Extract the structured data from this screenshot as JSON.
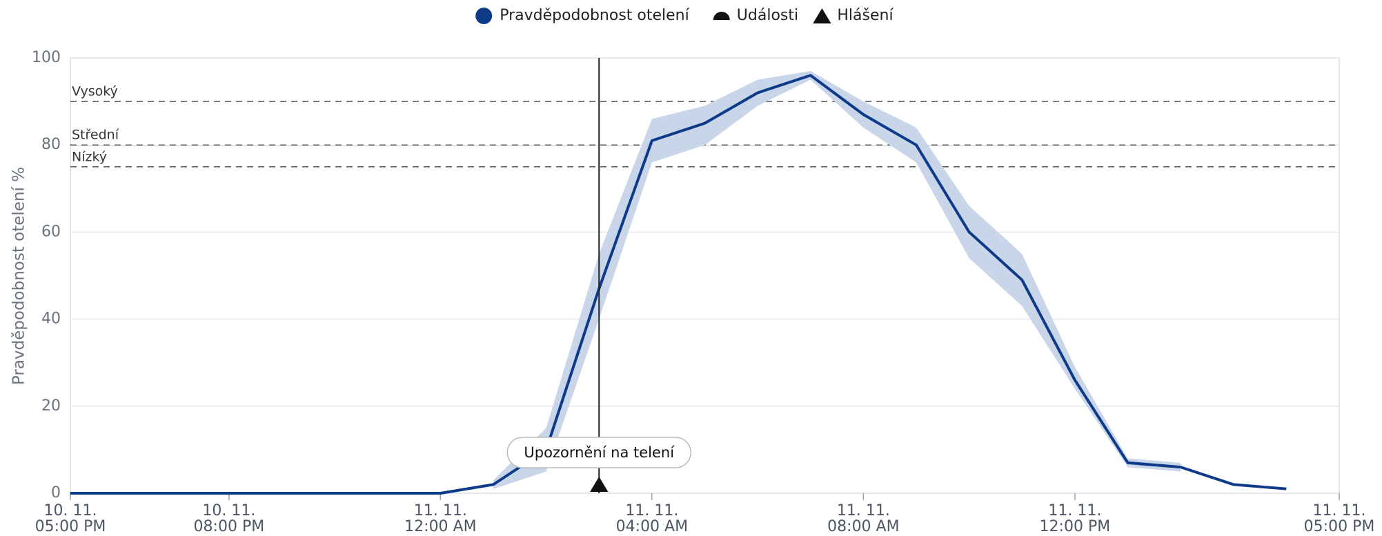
{
  "chart_data": {
    "type": "line",
    "ylabel": "Pravděpodobnost otelení %",
    "x": [
      0,
      1,
      2,
      3,
      4,
      5,
      6,
      7,
      8,
      9,
      10,
      11,
      12,
      13,
      14,
      15,
      16,
      17,
      18,
      19,
      20,
      21,
      22,
      23
    ],
    "series": [
      {
        "name": "Pravděpodobnost otelení",
        "color": "#0d3b8a",
        "band_color": "#c9d5e8",
        "values": [
          0,
          0,
          0,
          0,
          0,
          0,
          0,
          0,
          2,
          10,
          47,
          81,
          85,
          92,
          96,
          87,
          80,
          60,
          49,
          26,
          7,
          6,
          2,
          1
        ],
        "lower": [
          null,
          null,
          null,
          null,
          null,
          null,
          null,
          null,
          1,
          5,
          40,
          76,
          80,
          89,
          95,
          84,
          76,
          54,
          43,
          24,
          6,
          5,
          null,
          null
        ],
        "upper": [
          null,
          null,
          null,
          null,
          null,
          null,
          null,
          null,
          3,
          15,
          55,
          86,
          89,
          95,
          97,
          90,
          84,
          66,
          55,
          29,
          8,
          7,
          null,
          null
        ]
      }
    ],
    "legend_extra": [
      {
        "name": "Události",
        "marker": "half-circle"
      },
      {
        "name": "Hlášení",
        "marker": "triangle"
      }
    ],
    "thresholds": [
      {
        "value": 90,
        "label": "Vysoký"
      },
      {
        "value": 80,
        "label": "Střední"
      },
      {
        "value": 75,
        "label": "Nízký"
      }
    ],
    "annotations": [
      {
        "x": 10,
        "label": "Upozornění na telení",
        "marker": "triangle"
      }
    ],
    "xlim": [
      0,
      24
    ],
    "xticks": [
      {
        "value": 0,
        "label": "10. 11.\n05:00 PM"
      },
      {
        "value": 3,
        "label": "10. 11.\n08:00 PM"
      },
      {
        "value": 7,
        "label": "11. 11.\n12:00 AM"
      },
      {
        "value": 11,
        "label": "11. 11.\n04:00 AM"
      },
      {
        "value": 15,
        "label": "11. 11.\n08:00 AM"
      },
      {
        "value": 19,
        "label": "11. 11.\n12:00 PM"
      },
      {
        "value": 24,
        "label": "11. 11.\n05:00 PM"
      }
    ],
    "ylim": [
      0,
      100
    ],
    "yticks": [
      0,
      20,
      40,
      60,
      80,
      100
    ],
    "grid": true
  }
}
